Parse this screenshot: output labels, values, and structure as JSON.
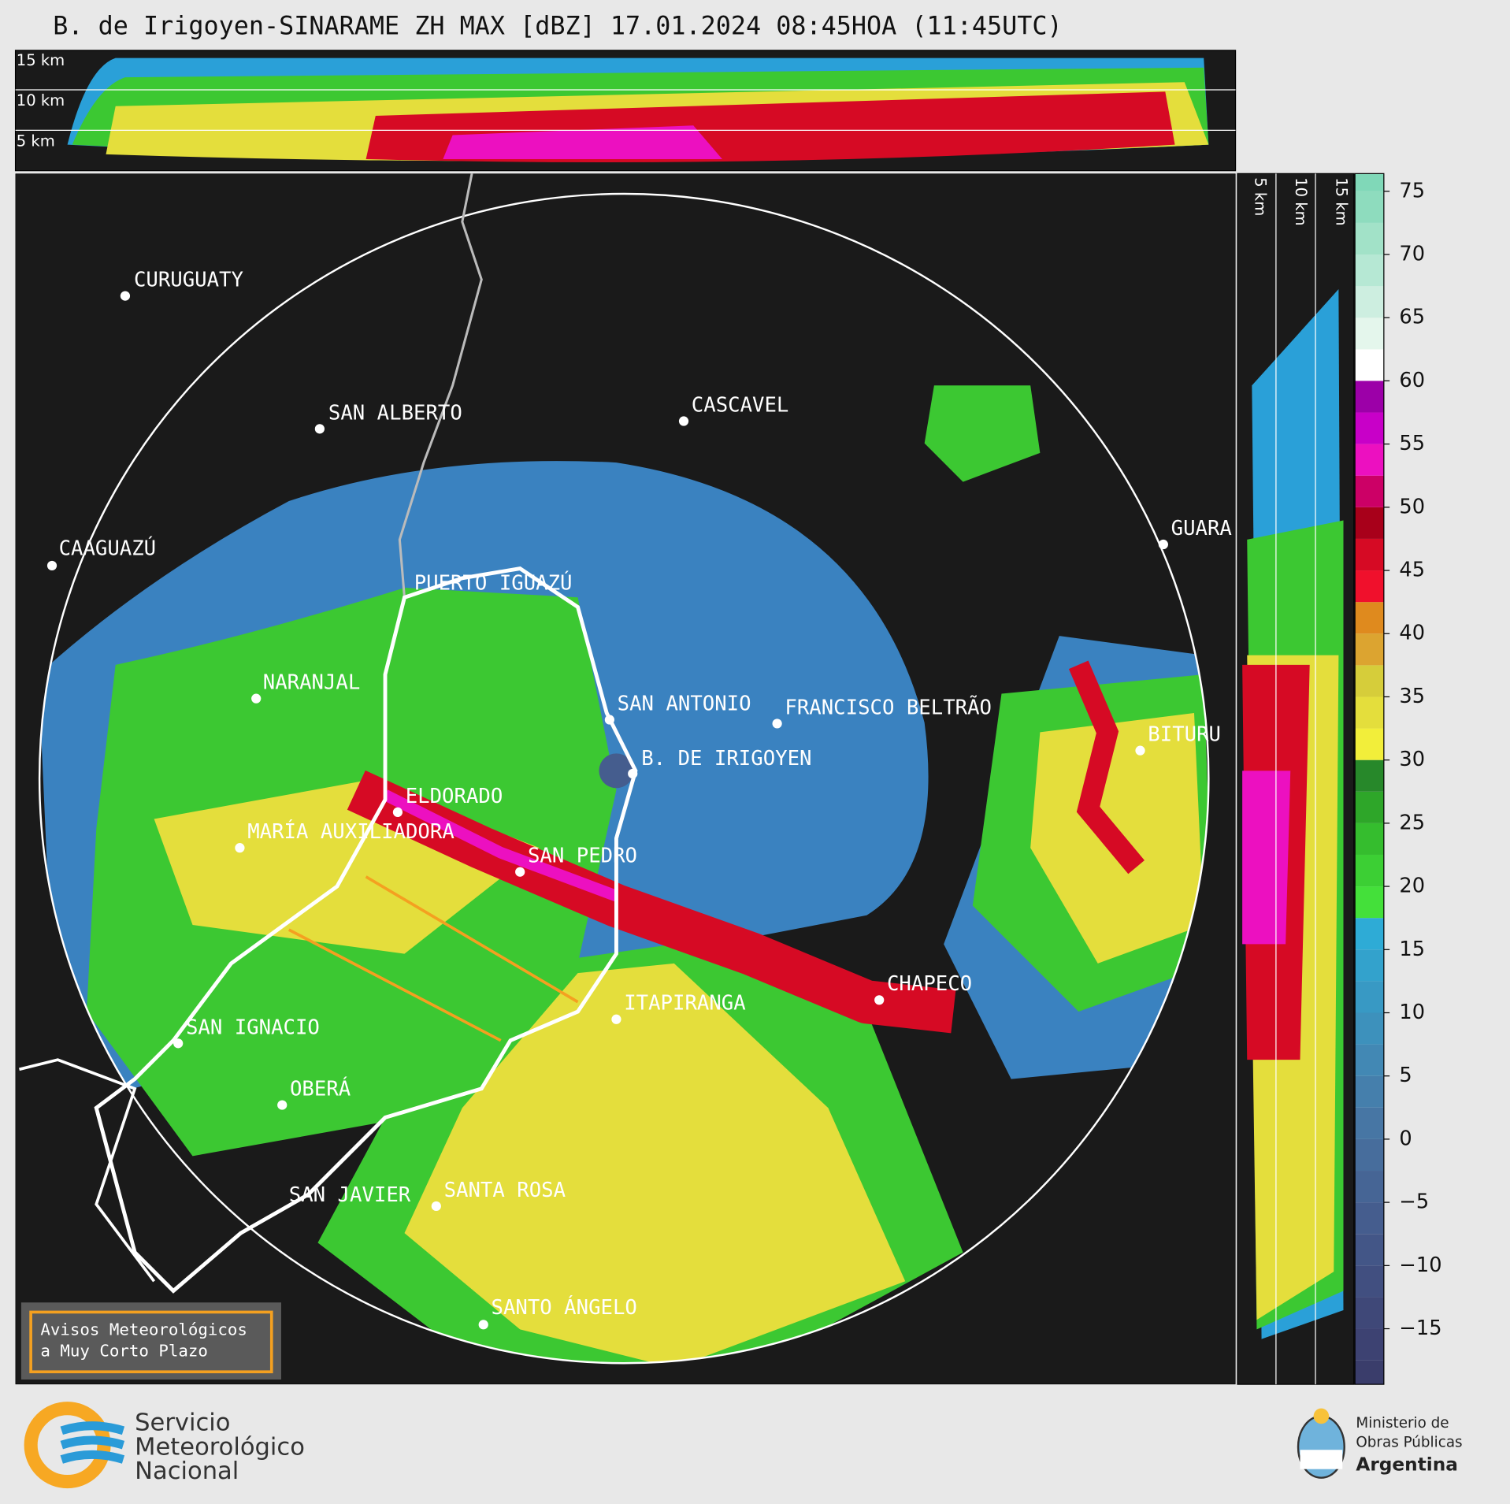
{
  "title": "B. de Irigoyen-SINARAME ZH MAX [dBZ] 17.01.2024 08:45HOA (11:45UTC)",
  "height_labels": [
    "15 km",
    "10 km",
    "5 km"
  ],
  "cities": [
    "CURUGUATY",
    "SAN ALBERTO",
    "CASCAVEL",
    "CAAGUAZÚ",
    "GUARA",
    "PUERTO IGUAZÚ",
    "NARANJAL",
    "SAN ANTONIO",
    "FRANCISCO BELTRÃO",
    "BITURU",
    "B. DE IRIGOYEN",
    "ELDORADO",
    "MARÍA AUXILIADORA",
    "SAN PEDRO",
    "CHAPECO",
    "ITAPIRANGA",
    "SAN IGNACIO",
    "OBERÁ",
    "SAN JAVIER",
    "SANTA ROSA",
    "SANTO ÁNGELO"
  ],
  "colorbar": {
    "clim": [
      -19.4,
      76.4
    ],
    "ticks": [
      75,
      70,
      65,
      60,
      55,
      50,
      45,
      40,
      35,
      30,
      25,
      20,
      15,
      10,
      5,
      0,
      {
        "value": -5,
        "label": "−5"
      },
      {
        "value": -10,
        "label": "−10"
      },
      {
        "value": -15,
        "label": "−15"
      }
    ],
    "bounds": [
      -19.4,
      -17.5,
      -15,
      -12.5,
      -10,
      -7.5,
      -5,
      -2.5,
      0,
      2.5,
      5,
      7.5,
      10,
      12.5,
      15,
      17.5,
      20,
      22.5,
      25,
      27.5,
      30,
      32.5,
      35,
      37.5,
      40,
      42.5,
      45,
      47.5,
      50,
      52.5,
      55,
      57.5,
      60,
      62.5,
      65,
      67.5,
      70,
      72.5,
      75,
      76.4
    ],
    "colors": [
      "#3a3d6b",
      "#3d4272",
      "#3f4878",
      "#414f80",
      "#435687",
      "#455d8e",
      "#466595",
      "#476d9c",
      "#4776a4",
      "#457fac",
      "#4288b4",
      "#3d91bc",
      "#3899c4",
      "#33a2cc",
      "#2eabd6",
      "#44e03a",
      "#3ccf34",
      "#35bd2e",
      "#2ea629",
      "#27882a",
      "#f2ee3a",
      "#e4de3c",
      "#d6cd3a",
      "#dca430",
      "#df8a1e",
      "#f0102c",
      "#d60a24",
      "#a8001a",
      "#cc0066",
      "#ec10c0",
      "#c800c8",
      "#9c00a8",
      "#ffffff",
      "#e4f6ec",
      "#cdeee0",
      "#b6e8d4",
      "#a2e2c8",
      "#8edcbe",
      "#80d8b8"
    ]
  },
  "legend_box": [
    "Avisos Meteorológicos",
    "a Muy Corto Plazo"
  ],
  "footer": {
    "smn": [
      "Servicio",
      "Meteorológico",
      "Nacional"
    ],
    "ministry": [
      "Ministerio de",
      "Obras Públicas",
      "Argentina"
    ]
  }
}
